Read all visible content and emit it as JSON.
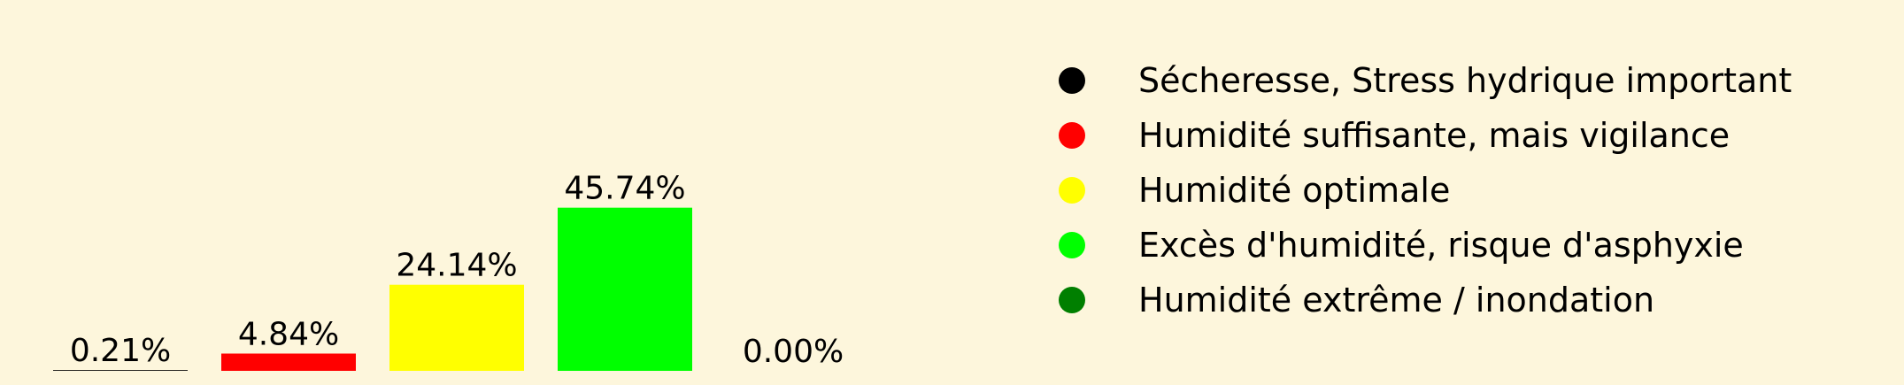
{
  "chart_data": {
    "type": "bar",
    "values": [
      0.21,
      4.84,
      24.14,
      45.74,
      0.0
    ],
    "value_labels": [
      "0.21%",
      "4.84%",
      "24.14%",
      "45.74%",
      "0.00%"
    ],
    "bar_colors": [
      "#000000",
      "#ff0000",
      "#ffff00",
      "#00ff00",
      "#007f00"
    ],
    "ylim": [
      0,
      50
    ],
    "legend_placement": "right",
    "legend": [
      {
        "label": "Sécheresse, Stress hydrique important",
        "color": "#000000"
      },
      {
        "label": "Humidité suffisante, mais vigilance",
        "color": "#ff0000"
      },
      {
        "label": "Humidité optimale",
        "color": "#ffff00"
      },
      {
        "label": "Excès d'humidité, risque d'asphyxie",
        "color": "#00ff00"
      },
      {
        "label": "Humidité extrême / inondation",
        "color": "#007f00"
      }
    ],
    "background_color": "#fdf6dc"
  }
}
